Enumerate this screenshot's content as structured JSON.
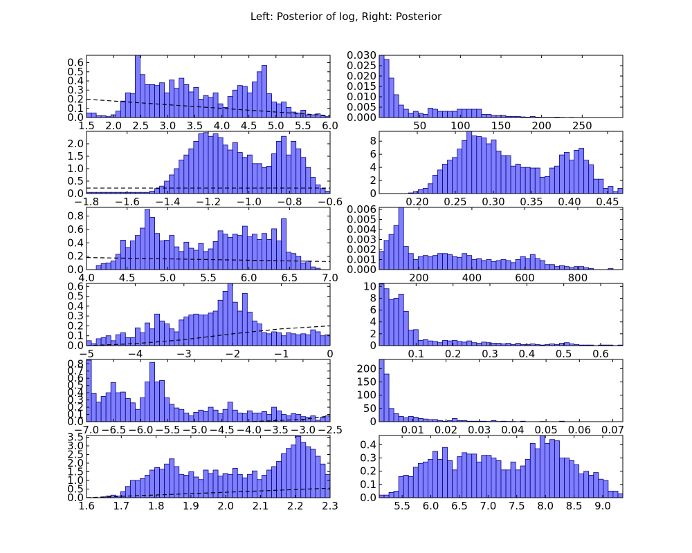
{
  "title": "Left: Posterior of log, Right: Posterior",
  "colors": {
    "bar_fill": "#7f7fff",
    "bar_edge": "#000080",
    "prior_line": "#000000",
    "background": "#ffffff"
  },
  "chart_data": [
    {
      "type": "bar",
      "panel": "row1-left",
      "style": "histogram",
      "xlim": [
        1.5,
        6.0
      ],
      "ylim": [
        0,
        0.68
      ],
      "xticks": [
        "1.5",
        "2.0",
        "2.5",
        "3.0",
        "3.5",
        "4.0",
        "4.5",
        "5.0",
        "5.5",
        "6.0"
      ],
      "yticks": [
        "0.0",
        "0.1",
        "0.2",
        "0.3",
        "0.4",
        "0.5",
        "0.6"
      ],
      "bins": {
        "start": 1.5,
        "width": 0.09,
        "values": [
          0.05,
          0.05,
          0.02,
          0.02,
          0.01,
          0.03,
          0.07,
          0.18,
          0.27,
          0.26,
          0.69,
          0.47,
          0.36,
          0.36,
          0.35,
          0.38,
          0.27,
          0.41,
          0.32,
          0.43,
          0.36,
          0.28,
          0.33,
          0.2,
          0.24,
          0.22,
          0.27,
          0.15,
          0.11,
          0.23,
          0.3,
          0.35,
          0.34,
          0.27,
          0.39,
          0.5,
          0.57,
          0.26,
          0.17,
          0.15,
          0.17,
          0.11,
          0.06,
          0.05,
          0.08,
          0.03,
          0.03,
          0.04,
          0.02,
          0.01
        ]
      },
      "prior": {
        "style": "dashed",
        "x": [
          1.5,
          6.0
        ],
        "y": [
          0.2,
          0.02
        ]
      }
    },
    {
      "type": "bar",
      "panel": "row1-right",
      "style": "histogram",
      "xlim": [
        0,
        300
      ],
      "ylim": [
        0,
        0.03
      ],
      "xticks": [
        "50",
        "100",
        "150",
        "200",
        "250"
      ],
      "yticks": [
        "0.000",
        "0.005",
        "0.010",
        "0.015",
        "0.020",
        "0.025",
        "0.030"
      ],
      "bins": {
        "start": 0,
        "width": 6,
        "values": [
          0.03,
          0.028,
          0.019,
          0.011,
          0.006,
          0.004,
          0.002,
          0.003,
          0.002,
          0.0015,
          0.0045,
          0.004,
          0.003,
          0.003,
          0.003,
          0.003,
          0.004,
          0.004,
          0.004,
          0.004,
          0.004,
          0.0015,
          0.0015,
          0.001,
          0.001,
          0.001,
          0.0005,
          0.0005,
          0.0005,
          0.0003,
          0.0002,
          0.0005,
          0.0002,
          0.0001,
          0.0001,
          0.0001,
          0.0002,
          0.0001,
          0,
          0.0001,
          0,
          0,
          0,
          0,
          0,
          0,
          0,
          0,
          0,
          0
        ]
      },
      "prior": null
    },
    {
      "type": "bar",
      "panel": "row2-left",
      "style": "histogram",
      "xlim": [
        -1.8,
        -0.6
      ],
      "ylim": [
        0,
        2.5
      ],
      "xticks": [
        "−1.8",
        "−1.6",
        "−1.4",
        "−1.2",
        "−1.0",
        "−0.8",
        "−0.6"
      ],
      "yticks": [
        "0.0",
        "0.5",
        "1.0",
        "1.5",
        "2.0"
      ],
      "bins": {
        "start": -1.8,
        "width": 0.024,
        "values": [
          0.05,
          0.05,
          0.05,
          0.05,
          0.05,
          0.05,
          0.05,
          0.05,
          0.05,
          0.05,
          0.05,
          0.05,
          0.05,
          0.1,
          0.2,
          0.3,
          0.5,
          0.75,
          1.0,
          1.35,
          1.55,
          1.8,
          2.1,
          2.4,
          2.45,
          2.3,
          2.4,
          2.25,
          1.95,
          1.75,
          2.05,
          1.65,
          1.45,
          1.55,
          1.2,
          1.2,
          1.05,
          1.1,
          1.6,
          2.1,
          2.3,
          1.55,
          2.1,
          1.8,
          1.45,
          1.05,
          0.65,
          0.35,
          0.2,
          0.1
        ]
      },
      "prior": {
        "style": "dashed",
        "x": [
          -1.8,
          -0.6
        ],
        "y": [
          0.22,
          0.22
        ]
      }
    },
    {
      "type": "bar",
      "panel": "row2-right",
      "style": "histogram",
      "xlim": [
        0.15,
        0.47
      ],
      "ylim": [
        0,
        9.5
      ],
      "xticks": [
        "0.20",
        "0.25",
        "0.30",
        "0.35",
        "0.40",
        "0.45"
      ],
      "yticks": [
        "0",
        "2",
        "4",
        "6",
        "8"
      ],
      "bins": {
        "start": 0.15,
        "width": 0.0064,
        "values": [
          0,
          0,
          0,
          0,
          0,
          0,
          0.1,
          0.3,
          0.6,
          0.8,
          1.5,
          2.8,
          3.6,
          4.5,
          5.1,
          5.5,
          6.8,
          8.1,
          9.5,
          8.8,
          8.7,
          8.5,
          7.6,
          8.2,
          6.5,
          5.8,
          5.8,
          4.2,
          4.5,
          4.0,
          4.0,
          3.9,
          3.9,
          2.5,
          2.6,
          3.9,
          4.2,
          5.9,
          6.3,
          5.1,
          6.6,
          6.9,
          5.1,
          4.4,
          2.2,
          2.2,
          0.8,
          1.1,
          0.3,
          0.8
        ]
      },
      "prior": null
    },
    {
      "type": "bar",
      "panel": "row3-left",
      "style": "histogram",
      "xlim": [
        4.0,
        7.0
      ],
      "ylim": [
        0,
        0.93
      ],
      "xticks": [
        "4.0",
        "4.5",
        "5.0",
        "5.5",
        "6.0",
        "6.5",
        "7.0"
      ],
      "yticks": [
        "0.0",
        "0.2",
        "0.4",
        "0.6",
        "0.8"
      ],
      "bins": {
        "start": 4.0,
        "width": 0.06,
        "values": [
          0,
          0,
          0.06,
          0.09,
          0.1,
          0.13,
          0.23,
          0.44,
          0.33,
          0.43,
          0.51,
          0.62,
          0.9,
          0.78,
          0.54,
          0.43,
          0.44,
          0.51,
          0.34,
          0.27,
          0.41,
          0.32,
          0.29,
          0.39,
          0.27,
          0.31,
          0.42,
          0.58,
          0.53,
          0.48,
          0.53,
          0.51,
          0.65,
          0.49,
          0.53,
          0.45,
          0.54,
          0.45,
          0.61,
          0.43,
          0.76,
          0.26,
          0.24,
          0.2,
          0.1,
          0.13,
          0.04,
          0.02,
          0,
          0
        ]
      },
      "prior": {
        "style": "dashed",
        "x": [
          4.0,
          7.0
        ],
        "y": [
          0.18,
          0.12
        ]
      }
    },
    {
      "type": "bar",
      "panel": "row3-right",
      "style": "histogram",
      "xlim": [
        50,
        970
      ],
      "ylim": [
        0,
        0.0062
      ],
      "xticks": [
        "200",
        "400",
        "600",
        "800"
      ],
      "yticks": [
        "0.000",
        "0.001",
        "0.002",
        "0.003",
        "0.004",
        "0.005",
        "0.006"
      ],
      "bins": {
        "start": 50,
        "width": 18.4,
        "values": [
          0.0018,
          0.0029,
          0.0035,
          0.0044,
          0.0062,
          0.0023,
          0.0016,
          0.001,
          0.0013,
          0.0014,
          0.0013,
          0.0014,
          0.0016,
          0.0016,
          0.0015,
          0.0013,
          0.0012,
          0.0016,
          0.0014,
          0.001,
          0.0011,
          0.0009,
          0.001,
          0.0008,
          0.0009,
          0.001,
          0.0009,
          0.0007,
          0.001,
          0.0013,
          0.0011,
          0.0015,
          0.0011,
          0.0009,
          0.0005,
          0.0005,
          0.0003,
          0.0004,
          0.0003,
          0.0002,
          0.0003,
          0.0003,
          0.0002,
          0.0001,
          0,
          0,
          0,
          0.0001,
          0,
          0
        ]
      },
      "prior": null
    },
    {
      "type": "bar",
      "panel": "row4-left",
      "style": "histogram",
      "xlim": [
        -5,
        0
      ],
      "ylim": [
        0,
        0.63
      ],
      "xticks": [
        "−5",
        "−4",
        "−3",
        "−2",
        "−1",
        "0"
      ],
      "yticks": [
        "0.0",
        "0.1",
        "0.2",
        "0.3",
        "0.4",
        "0.5",
        "0.6"
      ],
      "bins": {
        "start": -5,
        "width": 0.1,
        "values": [
          0.05,
          0.02,
          0.07,
          0.08,
          0.1,
          0.05,
          0.11,
          0.13,
          0.08,
          0.08,
          0.18,
          0.13,
          0.23,
          0.17,
          0.32,
          0.25,
          0.22,
          0.17,
          0.14,
          0.26,
          0.29,
          0.31,
          0.32,
          0.31,
          0.31,
          0.33,
          0.35,
          0.46,
          0.55,
          0.63,
          0.44,
          0.35,
          0.53,
          0.34,
          0.25,
          0.22,
          0.13,
          0.12,
          0.14,
          0.13,
          0.1,
          0.13,
          0.12,
          0.11,
          0.12,
          0.11,
          0.16,
          0.14,
          0.1,
          0.11
        ]
      },
      "prior": {
        "style": "dashed",
        "x": [
          -5,
          -4,
          -3,
          -2,
          -1,
          0
        ],
        "y": [
          0.0,
          0.02,
          0.06,
          0.12,
          0.17,
          0.2
        ]
      }
    },
    {
      "type": "bar",
      "panel": "row4-right",
      "style": "histogram",
      "xlim": [
        0.0,
        0.66
      ],
      "ylim": [
        0,
        10.5
      ],
      "xticks": [
        "0.1",
        "0.2",
        "0.3",
        "0.4",
        "0.5",
        "0.6"
      ],
      "yticks": [
        "0",
        "2",
        "4",
        "6",
        "8",
        "10"
      ],
      "bins": {
        "start": 0.0,
        "width": 0.0132,
        "values": [
          10.4,
          9.6,
          7.8,
          8.0,
          8.7,
          5.8,
          2.6,
          2.7,
          0.9,
          1.0,
          0.8,
          0.7,
          0.5,
          0.9,
          0.8,
          0.9,
          0.7,
          0.6,
          0.8,
          0.5,
          0.4,
          0.6,
          0.5,
          0.4,
          0.4,
          0.3,
          0.4,
          0.2,
          0.4,
          0.2,
          0.2,
          0.3,
          0.2,
          0.1,
          0.2,
          0.3,
          0.2,
          0.4,
          0.5,
          0.3,
          0.2,
          0.1,
          0.1,
          0.1,
          0,
          0.1,
          0.1,
          0.1,
          0,
          0.1
        ]
      },
      "prior": null
    },
    {
      "type": "bar",
      "panel": "row5-left",
      "style": "histogram",
      "xlim": [
        -7.0,
        -2.5
      ],
      "ylim": [
        0,
        0.86
      ],
      "xticks": [
        "−7.0",
        "−6.5",
        "−6.0",
        "−5.5",
        "−5.0",
        "−4.5",
        "−4.0",
        "−3.5",
        "−3.0",
        "−2.5"
      ],
      "yticks": [
        "0.0",
        "0.1",
        "0.2",
        "0.3",
        "0.4",
        "0.5",
        "0.6",
        "0.7",
        "0.8"
      ],
      "bins": {
        "start": -7.0,
        "width": 0.09,
        "values": [
          0.85,
          0.39,
          0.27,
          0.35,
          0.4,
          0.54,
          0.4,
          0.41,
          0.32,
          0.26,
          0.17,
          0.33,
          0.55,
          0.82,
          0.55,
          0.57,
          0.33,
          0.24,
          0.19,
          0.17,
          0.12,
          0.08,
          0.13,
          0.16,
          0.14,
          0.2,
          0.16,
          0.11,
          0.17,
          0.27,
          0.16,
          0.12,
          0.11,
          0.15,
          0.12,
          0.12,
          0.14,
          0.1,
          0.2,
          0.15,
          0.1,
          0.08,
          0.11,
          0.1,
          0.07,
          0.06,
          0.08,
          0.02,
          0.06,
          0.08
        ]
      },
      "prior": {
        "style": "dashed",
        "x": [
          -7.0,
          -4.0,
          -3.0,
          -2.5
        ],
        "y": [
          0.0,
          0.0,
          0.03,
          0.08
        ]
      }
    },
    {
      "type": "bar",
      "panel": "row5-right",
      "style": "histogram",
      "xlim": [
        0.0,
        0.073
      ],
      "ylim": [
        0,
        235
      ],
      "xticks": [
        "0.01",
        "0.02",
        "0.03",
        "0.04",
        "0.05",
        "0.06",
        "0.07"
      ],
      "yticks": [
        "0",
        "50",
        "100",
        "150",
        "200"
      ],
      "bins": {
        "start": 0.0,
        "width": 0.00146,
        "values": [
          235,
          180,
          50,
          30,
          20,
          15,
          20,
          17,
          12,
          10,
          8,
          8,
          4,
          2,
          4,
          12,
          4,
          4,
          2,
          2,
          2,
          2,
          1,
          4,
          1,
          2,
          1,
          1,
          0,
          2,
          0,
          0,
          0,
          1,
          0,
          0,
          0,
          2,
          0,
          0,
          0,
          0,
          0,
          0,
          0,
          0,
          0,
          0,
          0,
          0
        ]
      },
      "prior": null
    },
    {
      "type": "bar",
      "panel": "row6-left",
      "style": "histogram",
      "xlim": [
        1.6,
        2.3
      ],
      "ylim": [
        0,
        3.6
      ],
      "xticks": [
        "1.6",
        "1.7",
        "1.8",
        "1.9",
        "2.0",
        "2.1",
        "2.2",
        "2.3"
      ],
      "yticks": [
        "0.0",
        "0.5",
        "1.0",
        "1.5",
        "2.0",
        "2.5",
        "3.0",
        "3.5"
      ],
      "bins": {
        "start": 1.6,
        "width": 0.014,
        "values": [
          0,
          0,
          0,
          0.05,
          0.1,
          0.15,
          0.1,
          0.35,
          0.65,
          1.0,
          1.0,
          1.1,
          1.3,
          1.6,
          1.75,
          1.65,
          1.95,
          2.25,
          1.8,
          1.35,
          1.3,
          1.5,
          1.2,
          1.05,
          1.6,
          1.4,
          1.6,
          1.25,
          1.4,
          1.35,
          1.7,
          1.35,
          1.15,
          1.35,
          1.55,
          1.05,
          1.3,
          1.6,
          1.8,
          2.1,
          2.55,
          2.85,
          3.05,
          3.55,
          3.2,
          2.95,
          2.8,
          2.4,
          1.95,
          1.35
        ]
      },
      "prior": {
        "style": "dashed",
        "x": [
          1.6,
          2.3
        ],
        "y": [
          0.0,
          0.55
        ]
      }
    },
    {
      "type": "bar",
      "panel": "row6-right",
      "style": "histogram",
      "xlim": [
        5.1,
        9.35
      ],
      "ylim": [
        0,
        0.47
      ],
      "xticks": [
        "5.5",
        "6.0",
        "6.5",
        "7.0",
        "7.5",
        "8.0",
        "8.5",
        "9.0"
      ],
      "yticks": [
        "0.0",
        "0.1",
        "0.2",
        "0.3",
        "0.4"
      ],
      "bins": {
        "start": 5.1,
        "width": 0.085,
        "values": [
          0.02,
          0.02,
          0.04,
          0.05,
          0.16,
          0.17,
          0.16,
          0.23,
          0.26,
          0.27,
          0.29,
          0.35,
          0.29,
          0.38,
          0.28,
          0.21,
          0.31,
          0.34,
          0.33,
          0.33,
          0.27,
          0.32,
          0.32,
          0.3,
          0.28,
          0.21,
          0.21,
          0.27,
          0.21,
          0.24,
          0.29,
          0.41,
          0.37,
          0.47,
          0.41,
          0.44,
          0.43,
          0.3,
          0.3,
          0.28,
          0.25,
          0.18,
          0.2,
          0.17,
          0.19,
          0.14,
          0.13,
          0.05,
          0.05,
          0.03
        ]
      },
      "prior": null
    }
  ]
}
